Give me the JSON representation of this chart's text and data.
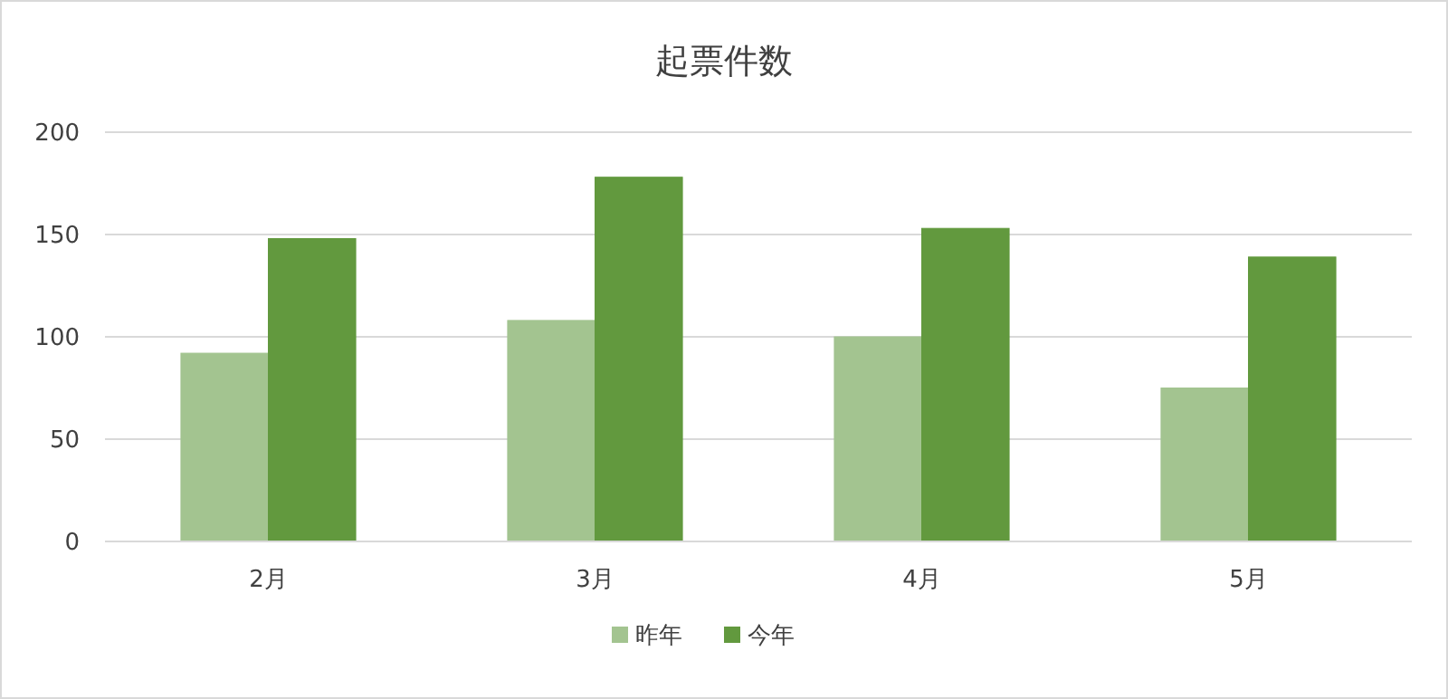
{
  "chart_data": {
    "type": "bar",
    "title": "起票件数",
    "categories": [
      "2月",
      "3月",
      "4月",
      "5月"
    ],
    "series": [
      {
        "name": "昨年",
        "color": "#a3c490",
        "values": [
          92,
          108,
          100,
          75
        ]
      },
      {
        "name": "今年",
        "color": "#62993e",
        "values": [
          148,
          178,
          153,
          139
        ]
      }
    ],
    "ylim": [
      0,
      200
    ],
    "yticks": [
      0,
      50,
      100,
      150,
      200
    ],
    "grid": "y",
    "legend": "bottom"
  }
}
